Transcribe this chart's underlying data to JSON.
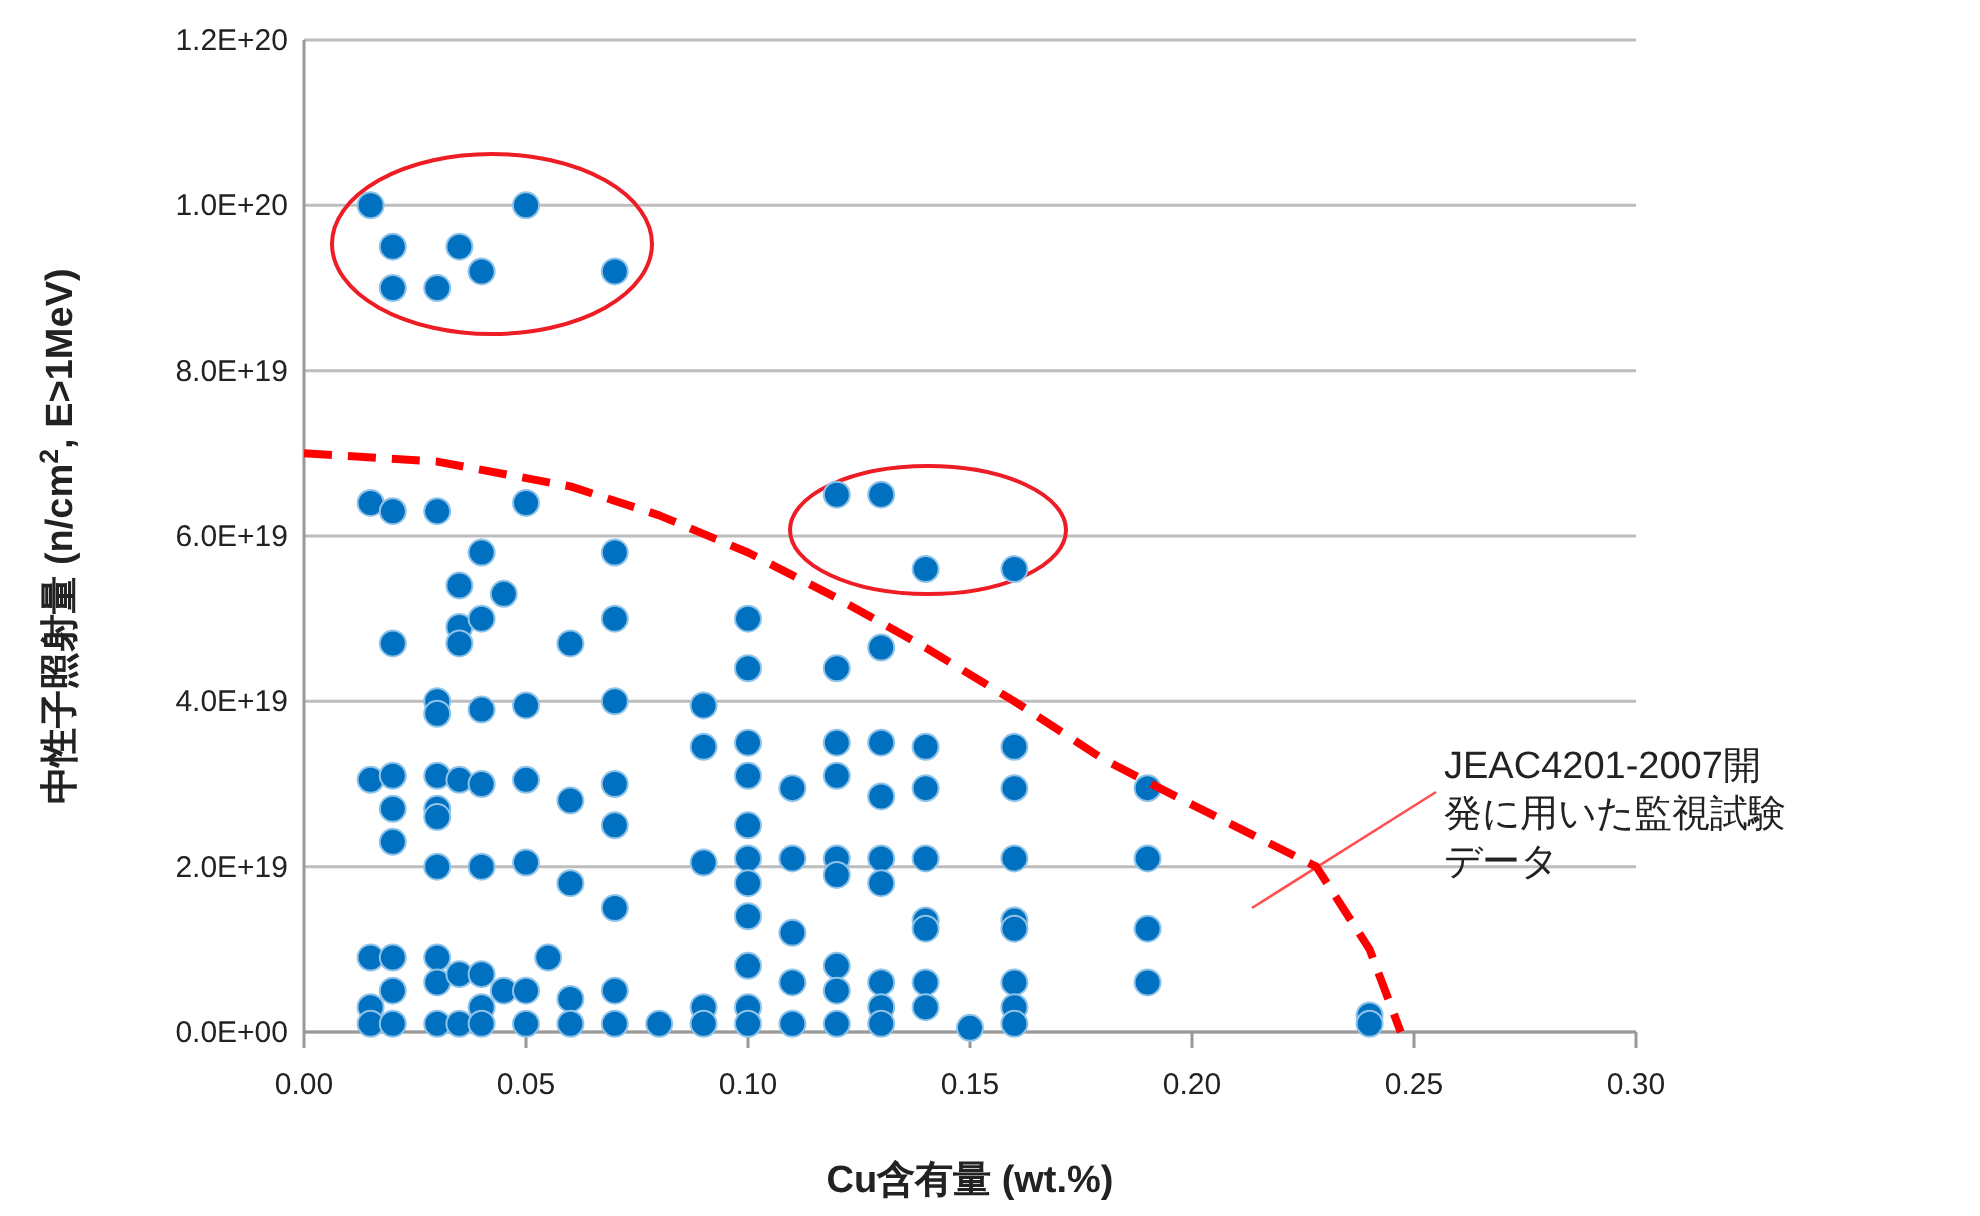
{
  "chart_data": {
    "type": "scatter",
    "xlabel": "Cu含有量 (wt.%)",
    "ylabel": "中性子照射量 (n/cm$^{2}$, E>1MeV)",
    "xlim": [
      0,
      0.3
    ],
    "ylim": [
      0,
      1.2e+20
    ],
    "xticks": [
      {
        "value": 0,
        "label": "0.00"
      },
      {
        "value": 0.05,
        "label": "0.05"
      },
      {
        "value": 0.1,
        "label": "0.10"
      },
      {
        "value": 0.15,
        "label": "0.15"
      },
      {
        "value": 0.2,
        "label": "0.20"
      },
      {
        "value": 0.25,
        "label": "0.25"
      },
      {
        "value": 0.3,
        "label": "0.30"
      }
    ],
    "yticks": [
      {
        "value": 0,
        "label": "0.0E+00"
      },
      {
        "value": 2e+19,
        "label": "2.0E+19"
      },
      {
        "value": 4e+19,
        "label": "4.0E+19"
      },
      {
        "value": 6e+19,
        "label": "6.0E+19"
      },
      {
        "value": 8e+19,
        "label": "8.0E+19"
      },
      {
        "value": 1e+20,
        "label": "1.0E+20"
      },
      {
        "value": 1.2e+20,
        "label": "1.2E+20"
      }
    ],
    "grid": "y",
    "annotations": [
      "JEAC4201-2007開発に用いた監視試験データ"
    ],
    "series": [
      {
        "color": "#0070c0",
        "marker": "circle",
        "x": [
          0.015,
          0.02,
          0.02,
          0.03,
          0.035,
          0.04,
          0.05,
          0.07,
          0.015,
          0.015,
          0.015,
          0.015,
          0.015,
          0.02,
          0.02,
          0.02,
          0.02,
          0.02,
          0.02,
          0.02,
          0.02,
          0.03,
          0.03,
          0.03,
          0.03,
          0.03,
          0.03,
          0.03,
          0.03,
          0.03,
          0.03,
          0.035,
          0.035,
          0.035,
          0.035,
          0.035,
          0.035,
          0.04,
          0.04,
          0.04,
          0.04,
          0.04,
          0.04,
          0.04,
          0.04,
          0.045,
          0.045,
          0.05,
          0.05,
          0.05,
          0.05,
          0.05,
          0.05,
          0.055,
          0.06,
          0.06,
          0.06,
          0.06,
          0.06,
          0.07,
          0.07,
          0.07,
          0.07,
          0.07,
          0.07,
          0.07,
          0.07,
          0.08,
          0.09,
          0.09,
          0.09,
          0.09,
          0.09,
          0.1,
          0.1,
          0.1,
          0.1,
          0.1,
          0.1,
          0.1,
          0.1,
          0.1,
          0.1,
          0.1,
          0.11,
          0.11,
          0.11,
          0.11,
          0.11,
          0.12,
          0.12,
          0.12,
          0.12,
          0.12,
          0.12,
          0.12,
          0.12,
          0.12,
          0.13,
          0.13,
          0.13,
          0.13,
          0.13,
          0.13,
          0.13,
          0.13,
          0.13,
          0.14,
          0.14,
          0.14,
          0.14,
          0.14,
          0.14,
          0.14,
          0.14,
          0.15,
          0.16,
          0.16,
          0.16,
          0.16,
          0.16,
          0.16,
          0.16,
          0.16,
          0.16,
          0.19,
          0.19,
          0.19,
          0.19,
          0.24,
          0.24
        ],
        "values": [
          1e+20,
          9.5e+19,
          9e+19,
          9e+19,
          9.5e+19,
          9.2e+19,
          1e+20,
          9.2e+19,
          6.4e+19,
          3.05e+19,
          9e+18,
          3e+18,
          1e+18,
          6.3e+19,
          4.7e+19,
          3.1e+19,
          2.7e+19,
          2.3e+19,
          9e+18,
          5e+18,
          1e+18,
          6.3e+19,
          4e+19,
          3.85e+19,
          3.1e+19,
          2.7e+19,
          2.6e+19,
          2e+19,
          9e+18,
          6e+18,
          1e+18,
          5.4e+19,
          4.9e+19,
          4.7e+19,
          3.05e+19,
          7e+18,
          1e+18,
          5.8e+19,
          5e+19,
          3.9e+19,
          3e+19,
          2e+19,
          7e+18,
          3e+18,
          1e+18,
          5.3e+19,
          5e+18,
          6.4e+19,
          3.95e+19,
          3.05e+19,
          2.05e+19,
          5e+18,
          1e+18,
          9e+18,
          4.7e+19,
          2.8e+19,
          1.8e+19,
          4e+18,
          1e+18,
          5.8e+19,
          5e+19,
          4e+19,
          3e+19,
          2.5e+19,
          1.5e+19,
          5e+18,
          1e+18,
          1e+18,
          3.95e+19,
          3.45e+19,
          2.05e+19,
          3e+18,
          1e+18,
          5e+19,
          4.4e+19,
          3.5e+19,
          3.1e+19,
          2.5e+19,
          2.1e+19,
          1.8e+19,
          1.4e+19,
          8e+18,
          3e+18,
          1e+18,
          2.95e+19,
          2.1e+19,
          1.2e+19,
          6e+18,
          1e+18,
          6.5e+19,
          4.4e+19,
          3.5e+19,
          3.1e+19,
          2.1e+19,
          1.9e+19,
          8e+18,
          5e+18,
          1e+18,
          6.5e+19,
          4.65e+19,
          3.5e+19,
          2.85e+19,
          2.1e+19,
          1.8e+19,
          6e+18,
          3e+18,
          1e+18,
          5.6e+19,
          3.45e+19,
          2.95e+19,
          2.1e+19,
          1.35e+19,
          1.25e+19,
          6e+18,
          3e+18,
          5e+17,
          5.6e+19,
          3.45e+19,
          2.95e+19,
          2.1e+19,
          1.35e+19,
          1.25e+19,
          6e+18,
          3e+18,
          1e+18,
          2.95e+19,
          2.1e+19,
          1.25e+19,
          6e+18,
          2e+18,
          1e+18
        ]
      },
      {
        "type": "line",
        "color": "#ff0000",
        "line_style": "dashed",
        "x": [
          0,
          0.03,
          0.06,
          0.08,
          0.1,
          0.12,
          0.14,
          0.16,
          0.18,
          0.2,
          0.228,
          0.24,
          0.247
        ],
        "values": [
          7e+19,
          6.9e+19,
          6.6e+19,
          6.25e+19,
          5.8e+19,
          5.25e+19,
          4.65e+19,
          4e+19,
          3.3e+19,
          2.75e+19,
          2e+19,
          1e+19,
          0
        ]
      }
    ]
  }
}
